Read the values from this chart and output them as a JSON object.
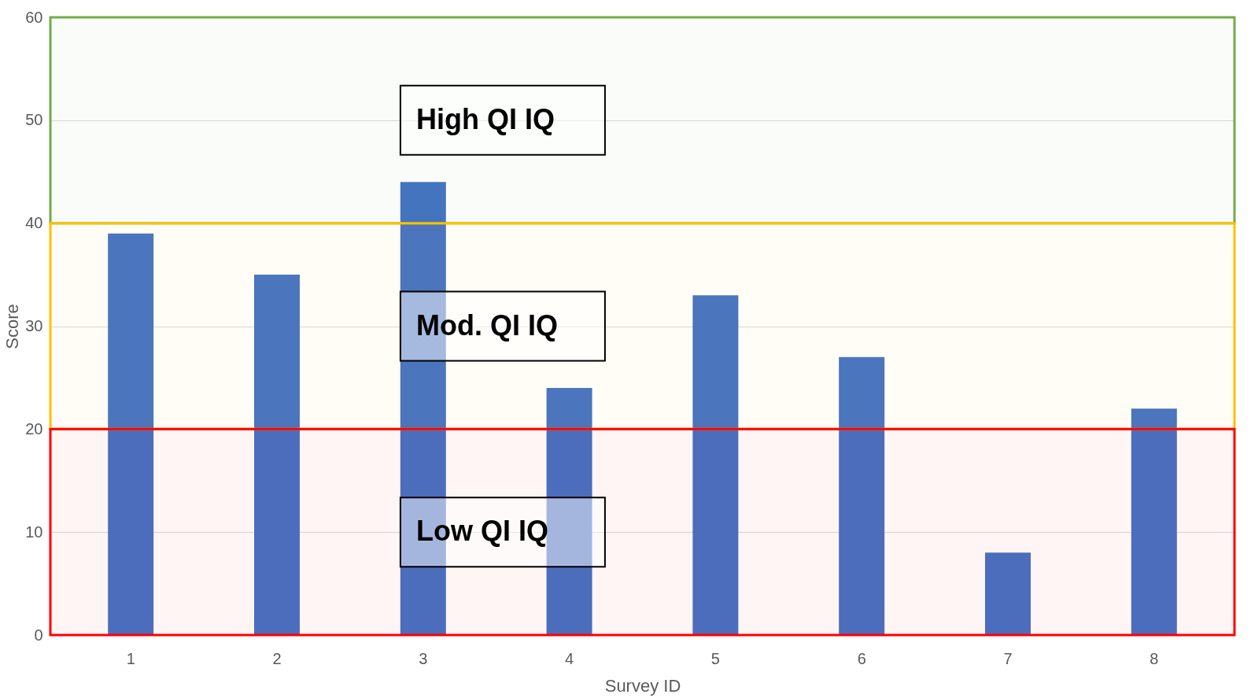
{
  "chart_data": {
    "type": "bar",
    "xlabel": "Survey ID",
    "ylabel": "Score",
    "categories": [
      "1",
      "2",
      "3",
      "4",
      "5",
      "6",
      "7",
      "8"
    ],
    "values": [
      39,
      35,
      44,
      24,
      33,
      27,
      8,
      22
    ],
    "color": "#4472c4",
    "ylim": [
      0,
      60
    ],
    "yticks": [
      0,
      10,
      20,
      30,
      40,
      50,
      60
    ],
    "grid": "y",
    "bands": [
      {
        "axis": "y",
        "from": 40,
        "to": 60,
        "label": "High QI IQ",
        "color": "#70ad47"
      },
      {
        "axis": "y",
        "from": 20,
        "to": 40,
        "label": "Mod. QI IQ",
        "color": "#ffc000"
      },
      {
        "axis": "y",
        "from": 0,
        "to": 20,
        "label": "Low QI IQ",
        "color": "#ff0000"
      }
    ]
  }
}
